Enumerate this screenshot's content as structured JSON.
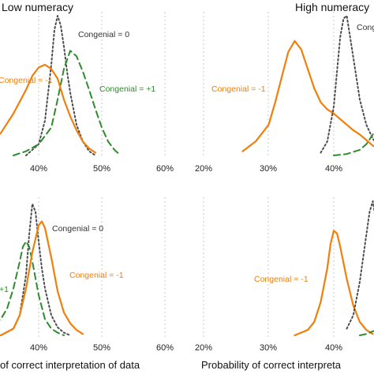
{
  "colors": {
    "congenial_0": "#4d4d4d",
    "congenial_plus1": "#2e8b2e",
    "congenial_minus1": "#f07f0c",
    "grid": "#c8c8c8"
  },
  "chart_data": [
    {
      "type": "line",
      "title": "Low numeracy",
      "xlabel": "",
      "x_ticks": [
        "40%",
        "50%",
        "60%"
      ],
      "xlim": [
        0.28,
        0.6
      ],
      "grid": "vertical dotted",
      "annotations": [
        "Congenial = 0",
        "Congenial = -1",
        "Congenial = +1"
      ],
      "series": [
        {
          "name": "Congenial = 0",
          "style": "dotted",
          "x": [
            0.38,
            0.4,
            0.41,
            0.42,
            0.425,
            0.43,
            0.435,
            0.44,
            0.445,
            0.45,
            0.46,
            0.47,
            0.48,
            0.49
          ],
          "y": [
            0.0,
            0.08,
            0.25,
            0.65,
            0.9,
            1.0,
            0.93,
            0.78,
            0.6,
            0.45,
            0.22,
            0.1,
            0.03,
            0.0
          ]
        },
        {
          "name": "Congenial = +1",
          "style": "dashed",
          "x": [
            0.36,
            0.38,
            0.4,
            0.42,
            0.43,
            0.44,
            0.45,
            0.46,
            0.47,
            0.48,
            0.49,
            0.5,
            0.51,
            0.52,
            0.53
          ],
          "y": [
            0.0,
            0.03,
            0.08,
            0.2,
            0.4,
            0.62,
            0.75,
            0.71,
            0.6,
            0.47,
            0.33,
            0.2,
            0.1,
            0.04,
            0.0
          ]
        },
        {
          "name": "Congenial = -1",
          "style": "solid",
          "x": [
            0.28,
            0.3,
            0.32,
            0.34,
            0.36,
            0.38,
            0.39,
            0.4,
            0.41,
            0.42,
            0.43,
            0.44,
            0.45,
            0.46,
            0.47,
            0.48,
            0.49
          ],
          "y": [
            0.0,
            0.03,
            0.08,
            0.16,
            0.3,
            0.47,
            0.57,
            0.63,
            0.65,
            0.62,
            0.55,
            0.4,
            0.28,
            0.18,
            0.1,
            0.05,
            0.02
          ]
        }
      ]
    },
    {
      "type": "line",
      "title": "High numeracy",
      "xlabel": "",
      "x_ticks": [
        "20%",
        "30%",
        "40%"
      ],
      "xlim": [
        0.2,
        0.48
      ],
      "grid": "vertical dotted",
      "annotations": [
        "Congenial = -1",
        "Congenial"
      ],
      "series": [
        {
          "name": "Congenial = -1",
          "style": "solid",
          "x": [
            0.26,
            0.28,
            0.3,
            0.31,
            0.32,
            0.33,
            0.34,
            0.35,
            0.36,
            0.37,
            0.38,
            0.39,
            0.4,
            0.41,
            0.42,
            0.43,
            0.44,
            0.45,
            0.46,
            0.47,
            0.48
          ],
          "y": [
            0.03,
            0.1,
            0.22,
            0.38,
            0.56,
            0.74,
            0.82,
            0.76,
            0.62,
            0.48,
            0.38,
            0.33,
            0.3,
            0.26,
            0.22,
            0.18,
            0.15,
            0.11,
            0.07,
            0.05,
            0.03
          ]
        },
        {
          "name": "Congenial = 0",
          "style": "dotted",
          "x": [
            0.38,
            0.39,
            0.4,
            0.405,
            0.41,
            0.415,
            0.42,
            0.43,
            0.44,
            0.45,
            0.46,
            0.47,
            0.48
          ],
          "y": [
            0.02,
            0.1,
            0.35,
            0.6,
            0.85,
            0.98,
            1.0,
            0.7,
            0.4,
            0.22,
            0.12,
            0.06,
            0.03
          ]
        },
        {
          "name": "Congenial = +1",
          "style": "dashed",
          "x": [
            0.4,
            0.42,
            0.44,
            0.45,
            0.46,
            0.47,
            0.48
          ],
          "y": [
            0.0,
            0.01,
            0.04,
            0.08,
            0.15,
            0.24,
            0.32
          ]
        }
      ]
    },
    {
      "type": "line",
      "title": "",
      "xlabel": "of correct interpretation of data",
      "x_ticks": [
        "40%",
        "50%",
        "60%"
      ],
      "xlim": [
        0.28,
        0.6
      ],
      "grid": "vertical dotted",
      "annotations": [
        "Congenial = 0",
        "Congenial = -1",
        "+1"
      ],
      "series": [
        {
          "name": "Congenial = 0",
          "style": "dotted",
          "x": [
            0.34,
            0.36,
            0.37,
            0.38,
            0.385,
            0.39,
            0.395,
            0.4,
            0.405,
            0.41,
            0.42,
            0.43,
            0.44,
            0.45
          ],
          "y": [
            0.0,
            0.05,
            0.15,
            0.45,
            0.75,
            0.98,
            0.92,
            0.7,
            0.5,
            0.35,
            0.15,
            0.06,
            0.02,
            0.0
          ]
        },
        {
          "name": "Congenial = +1",
          "style": "dashed",
          "x": [
            0.3,
            0.32,
            0.34,
            0.35,
            0.36,
            0.37,
            0.375,
            0.38,
            0.385,
            0.39,
            0.4,
            0.41,
            0.42,
            0.43,
            0.44
          ],
          "y": [
            0.03,
            0.06,
            0.12,
            0.2,
            0.35,
            0.55,
            0.66,
            0.7,
            0.66,
            0.55,
            0.3,
            0.12,
            0.05,
            0.02,
            0.0
          ]
        },
        {
          "name": "Congenial = -1",
          "style": "solid",
          "x": [
            0.34,
            0.36,
            0.37,
            0.38,
            0.39,
            0.4,
            0.405,
            0.41,
            0.42,
            0.43,
            0.44,
            0.45,
            0.46,
            0.47
          ],
          "y": [
            0.0,
            0.05,
            0.15,
            0.35,
            0.62,
            0.82,
            0.85,
            0.8,
            0.58,
            0.33,
            0.17,
            0.09,
            0.04,
            0.01
          ]
        }
      ]
    },
    {
      "type": "line",
      "title": "",
      "xlabel": "Probability of correct interpreta",
      "x_ticks": [
        "20%",
        "30%",
        "40%"
      ],
      "xlim": [
        0.2,
        0.48
      ],
      "grid": "vertical dotted",
      "annotations": [
        "Congenial = -1"
      ],
      "series": [
        {
          "name": "Congenial = -1",
          "style": "solid",
          "x": [
            0.34,
            0.36,
            0.37,
            0.38,
            0.39,
            0.395,
            0.4,
            0.405,
            0.41,
            0.42,
            0.43,
            0.44,
            0.45,
            0.46
          ],
          "y": [
            0.0,
            0.04,
            0.1,
            0.25,
            0.5,
            0.68,
            0.78,
            0.76,
            0.66,
            0.42,
            0.22,
            0.1,
            0.04,
            0.01
          ]
        },
        {
          "name": "Congenial = 0",
          "style": "dotted",
          "x": [
            0.42,
            0.43,
            0.44,
            0.45,
            0.455,
            0.46,
            0.47,
            0.48
          ],
          "y": [
            0.05,
            0.15,
            0.4,
            0.75,
            0.92,
            1.0,
            0.7,
            0.45
          ]
        },
        {
          "name": "Congenial = +1",
          "style": "dashed",
          "x": [
            0.44,
            0.45,
            0.46,
            0.47,
            0.48
          ],
          "y": [
            0.0,
            0.01,
            0.03,
            0.05,
            0.08
          ]
        }
      ]
    }
  ]
}
